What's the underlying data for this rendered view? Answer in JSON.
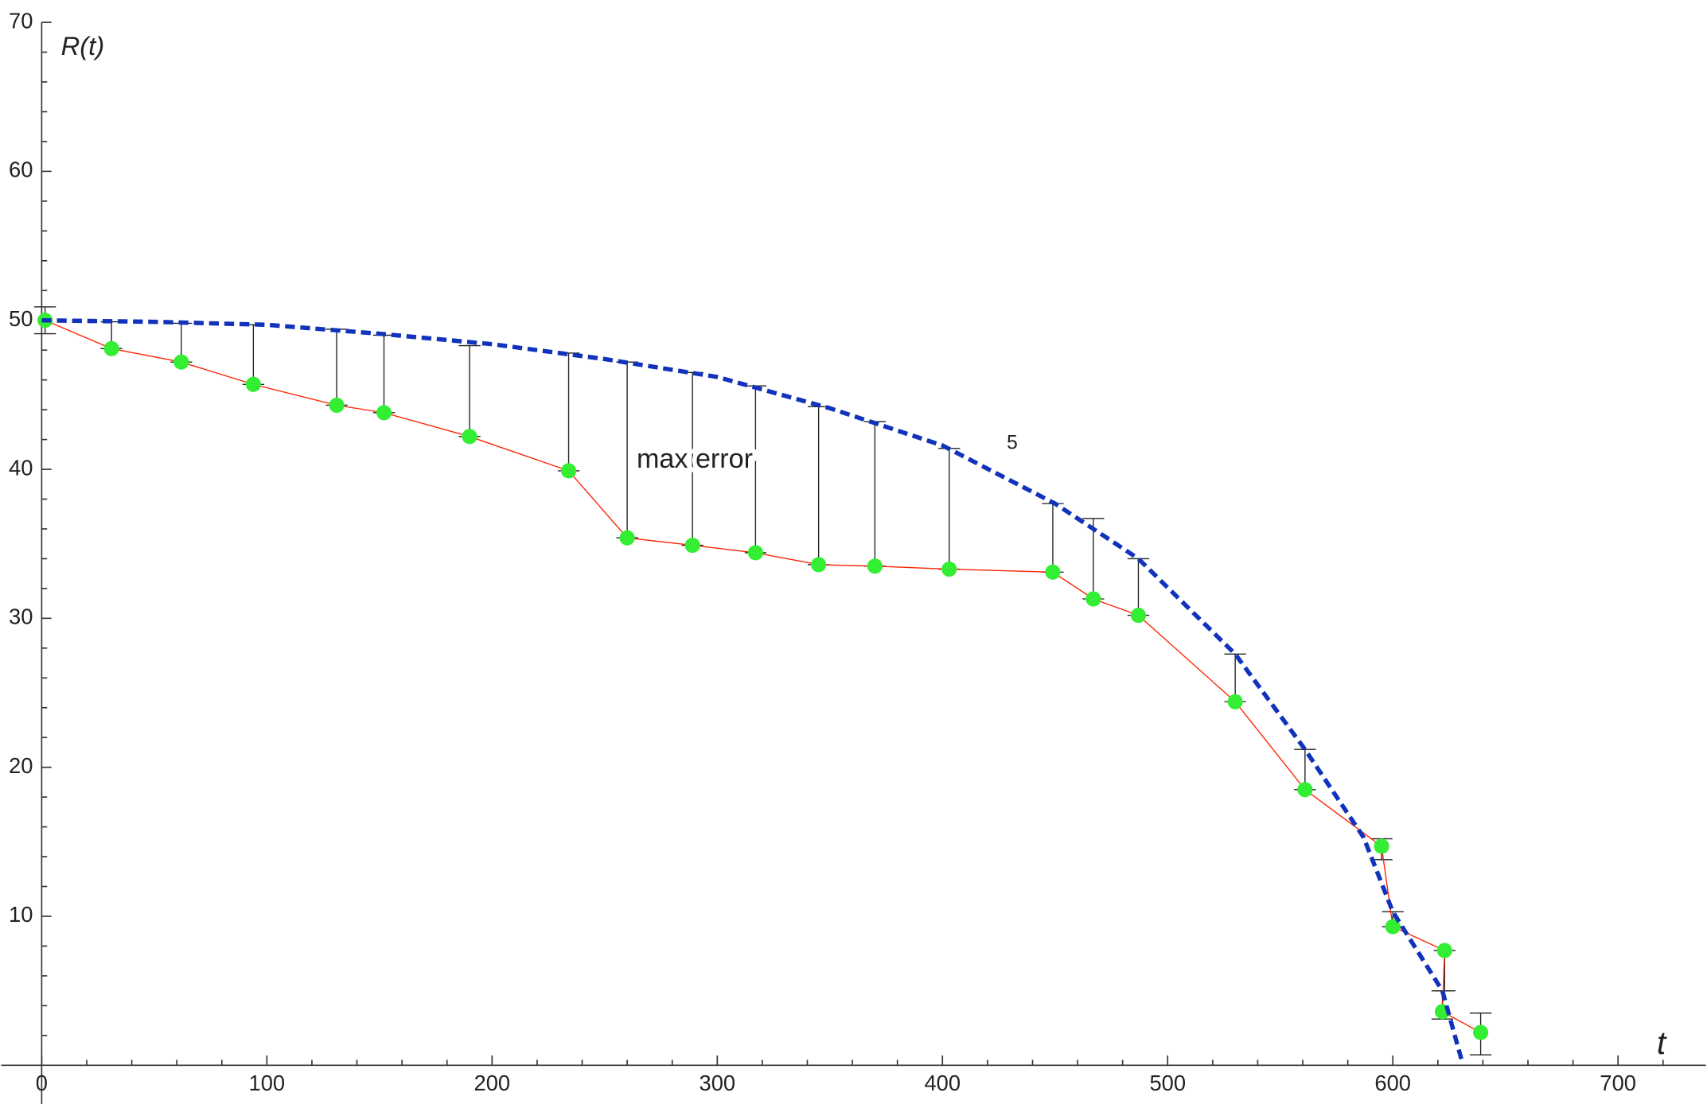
{
  "chart_data": {
    "type": "scatter",
    "ylabel": "R(t)",
    "xlabel": "t",
    "xlim": [
      -18,
      739
    ],
    "ylim": [
      -2.6,
      71.5
    ],
    "xticks": [
      0,
      100,
      200,
      300,
      400,
      500,
      600,
      700
    ],
    "yticks": [
      10,
      20,
      30,
      40,
      50,
      60,
      70
    ],
    "xticks_minor": [
      20,
      40,
      60,
      80,
      120,
      140,
      160,
      180,
      220,
      240,
      260,
      280,
      320,
      340,
      360,
      380,
      420,
      440,
      460,
      480,
      520,
      540,
      560,
      580,
      620,
      640,
      660,
      680,
      720
    ],
    "yticks_minor": [
      2,
      4,
      6,
      8,
      12,
      14,
      16,
      18,
      22,
      24,
      26,
      28,
      32,
      34,
      36,
      38,
      42,
      44,
      46,
      48,
      52,
      54,
      56,
      58,
      62,
      64,
      66,
      68
    ],
    "points": {
      "x": [
        1.5,
        31,
        62,
        94,
        131,
        152,
        190,
        234,
        260,
        289,
        317,
        345,
        370,
        403,
        449,
        467,
        487,
        530,
        561,
        595,
        600,
        623,
        622,
        639
      ],
      "y": [
        50.0,
        48.1,
        47.2,
        45.7,
        44.3,
        43.8,
        42.2,
        39.9,
        35.4,
        34.9,
        34.4,
        33.6,
        33.5,
        33.3,
        33.1,
        31.3,
        30.2,
        24.4,
        18.5,
        14.7,
        9.3,
        7.7,
        3.6,
        2.2
      ],
      "error_bars": [
        [
          49.1,
          50.9
        ],
        [
          48.1,
          49.9
        ],
        [
          47.2,
          49.8
        ],
        [
          45.7,
          49.7
        ],
        [
          44.3,
          49.4
        ],
        [
          43.8,
          49.0
        ],
        [
          42.2,
          48.3
        ],
        [
          39.9,
          47.8
        ],
        [
          35.4,
          47.2
        ],
        [
          34.9,
          46.5
        ],
        [
          34.4,
          45.6
        ],
        [
          33.6,
          44.2
        ],
        [
          33.5,
          43.2
        ],
        [
          33.3,
          41.4
        ],
        [
          33.1,
          37.7
        ],
        [
          31.3,
          36.7
        ],
        [
          30.2,
          34.0
        ],
        [
          24.4,
          27.6
        ],
        [
          18.5,
          21.2
        ],
        [
          13.8,
          15.2
        ],
        [
          9.3,
          10.3
        ],
        [
          5.0,
          7.7
        ],
        [
          3.1,
          5.0
        ],
        [
          0.7,
          3.5
        ]
      ],
      "marker_color": "#33ee33",
      "line_color": "#ff2200",
      "errorbar_color": "#222222"
    },
    "curve": {
      "x": [
        0,
        50,
        100,
        150,
        200,
        250,
        300,
        350,
        400,
        450,
        487,
        530,
        561,
        587,
        600,
        622,
        631
      ],
      "y": [
        50.0,
        49.9,
        49.7,
        49.1,
        48.4,
        47.4,
        46.2,
        44.1,
        41.6,
        37.7,
        34.0,
        27.6,
        21.2,
        15.3,
        10.3,
        5.0,
        0.1
      ],
      "color": "#1133bb",
      "dashed": true
    },
    "annotations": [
      {
        "text": "max error",
        "x": 290,
        "y": 40.6
      },
      {
        "text": "5",
        "x": 431,
        "y": 41.7
      }
    ]
  }
}
